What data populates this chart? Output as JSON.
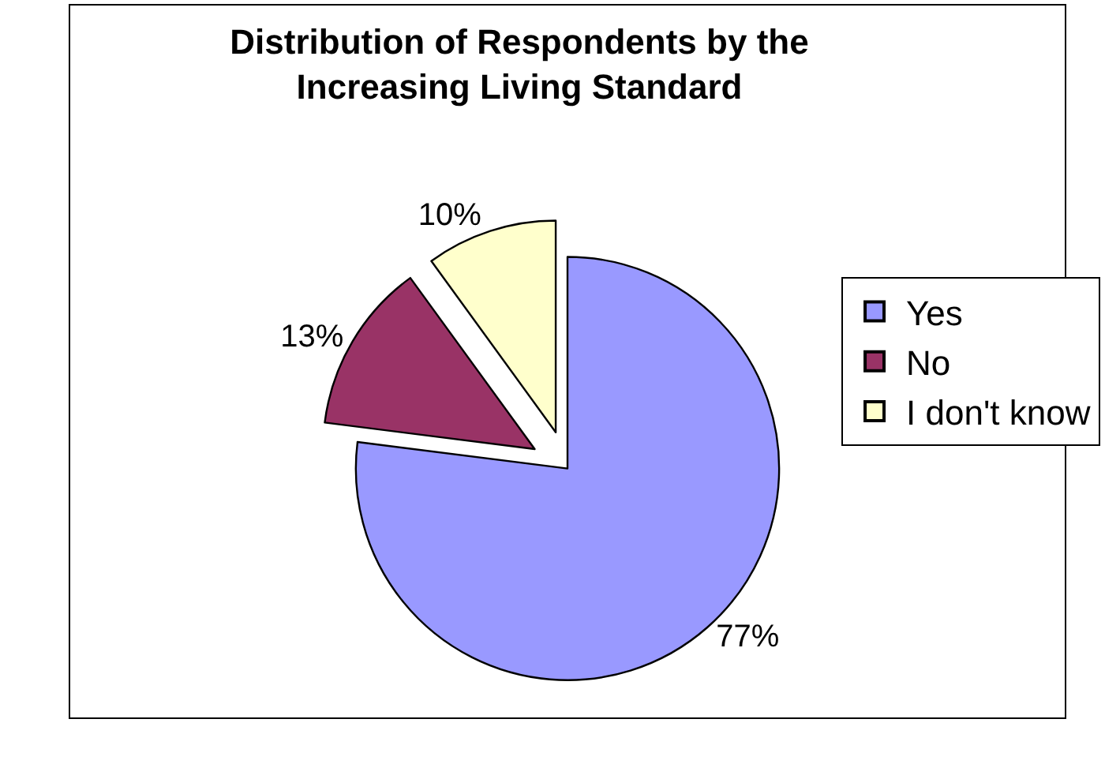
{
  "chart_data": {
    "type": "pie",
    "title": "Distribution of Respondents by the Increasing Living Standard",
    "categories": [
      "Yes",
      "No",
      "I don't know"
    ],
    "values": [
      77,
      13,
      10
    ],
    "colors": [
      "#9999ff",
      "#993366",
      "#ffffcc"
    ],
    "value_labels": [
      "77%",
      "13%",
      "10%"
    ],
    "legend": "right"
  }
}
